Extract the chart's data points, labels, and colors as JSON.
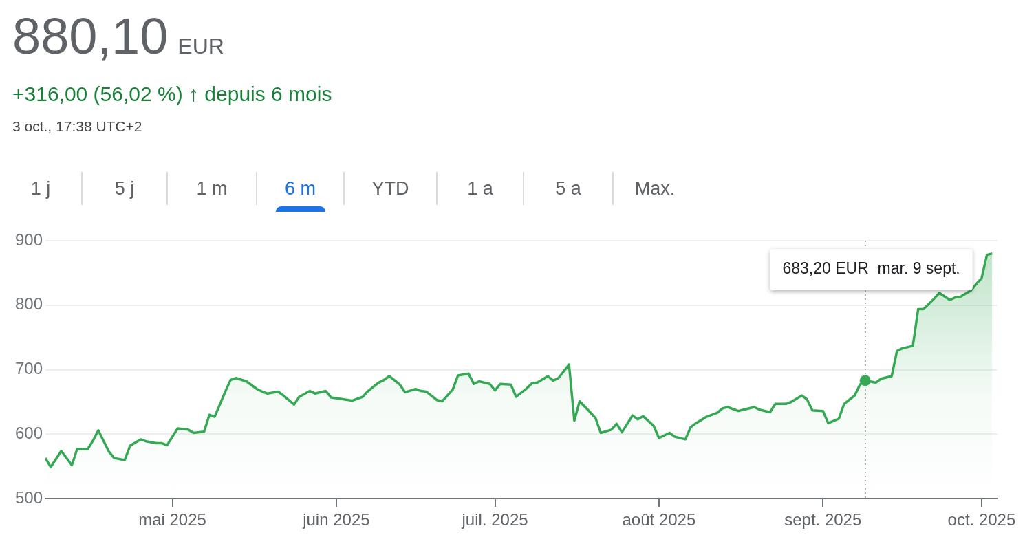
{
  "chart_data": {
    "type": "area",
    "title": "880,10 EUR",
    "subtitle": "+316,00 (56,02 %) ↑ depuis 6 mois",
    "annotations": [
      "3 oct., 17:38 UTC+2",
      "1 j",
      "5 j",
      "1 m",
      "6 m",
      "YTD",
      "1 a",
      "5 a",
      "Max.",
      "683,20 EUR  mar. 9 sept."
    ],
    "x": [
      "2025-04-07",
      "2025-04-08",
      "2025-04-10",
      "2025-04-12",
      "2025-04-13",
      "2025-04-15",
      "2025-04-16",
      "2025-04-17",
      "2025-04-19",
      "2025-04-20",
      "2025-04-22",
      "2025-04-23",
      "2025-04-25",
      "2025-04-26",
      "2025-04-28",
      "2025-04-29",
      "2025-04-30",
      "2025-05-02",
      "2025-05-04",
      "2025-05-05",
      "2025-05-07",
      "2025-05-08",
      "2025-05-09",
      "2025-05-11",
      "2025-05-12",
      "2025-05-13",
      "2025-05-15",
      "2025-05-17",
      "2025-05-18",
      "2025-05-19",
      "2025-05-21",
      "2025-05-22",
      "2025-05-24",
      "2025-05-25",
      "2025-05-27",
      "2025-05-28",
      "2025-05-30",
      "2025-05-31",
      "2025-06-04",
      "2025-06-06",
      "2025-06-07",
      "2025-06-09",
      "2025-06-10",
      "2025-06-11",
      "2025-06-13",
      "2025-06-14",
      "2025-06-16",
      "2025-06-17",
      "2025-06-18",
      "2025-06-20",
      "2025-06-21",
      "2025-06-23",
      "2025-06-24",
      "2025-06-26",
      "2025-06-27",
      "2025-06-28",
      "2025-06-30",
      "2025-07-01",
      "2025-07-02",
      "2025-07-04",
      "2025-07-05",
      "2025-07-07",
      "2025-07-08",
      "2025-07-09",
      "2025-07-11",
      "2025-07-12",
      "2025-07-13",
      "2025-07-15",
      "2025-07-16",
      "2025-07-17",
      "2025-07-19",
      "2025-07-20",
      "2025-07-21",
      "2025-07-23",
      "2025-07-24",
      "2025-07-25",
      "2025-07-27",
      "2025-07-28",
      "2025-07-29",
      "2025-07-31",
      "2025-08-01",
      "2025-08-03",
      "2025-08-04",
      "2025-08-06",
      "2025-08-07",
      "2025-08-08",
      "2025-08-10",
      "2025-08-12",
      "2025-08-13",
      "2025-08-14",
      "2025-08-16",
      "2025-08-17",
      "2025-08-19",
      "2025-08-20",
      "2025-08-22",
      "2025-08-23",
      "2025-08-25",
      "2025-08-26",
      "2025-08-28",
      "2025-08-29",
      "2025-08-30",
      "2025-09-01",
      "2025-09-02",
      "2025-09-04",
      "2025-09-05",
      "2025-09-07",
      "2025-09-08",
      "2025-09-09",
      "2025-09-11",
      "2025-09-12",
      "2025-09-14",
      "2025-09-15",
      "2025-09-16",
      "2025-09-18",
      "2025-09-19",
      "2025-09-20",
      "2025-09-22",
      "2025-09-23",
      "2025-09-25",
      "2025-09-26",
      "2025-09-27",
      "2025-09-29",
      "2025-09-30",
      "2025-10-01",
      "2025-10-02",
      "2025-10-03"
    ],
    "values": [
      563,
      549,
      574,
      552,
      577,
      577,
      590,
      606,
      573,
      563,
      560,
      582,
      592,
      589,
      586,
      586,
      583,
      609,
      607,
      602,
      604,
      630,
      627,
      666,
      684,
      687,
      682,
      670,
      666,
      663,
      666,
      660,
      646,
      658,
      667,
      663,
      667,
      657,
      652,
      658,
      667,
      680,
      684,
      690,
      677,
      665,
      670,
      667,
      666,
      653,
      651,
      669,
      691,
      694,
      678,
      682,
      678,
      668,
      678,
      677,
      658,
      671,
      679,
      680,
      690,
      683,
      687,
      708,
      621,
      651,
      634,
      625,
      602,
      607,
      616,
      603,
      629,
      623,
      628,
      613,
      594,
      602,
      596,
      592,
      611,
      617,
      627,
      633,
      640,
      642,
      636,
      638,
      642,
      638,
      634,
      647,
      647,
      650,
      660,
      654,
      637,
      636,
      617,
      624,
      647,
      660,
      677,
      683.2,
      680,
      686,
      690,
      729,
      733,
      737,
      794,
      794,
      810,
      819,
      808,
      812,
      813,
      823,
      833,
      842,
      878,
      880.1
    ],
    "color": "#34a853",
    "xlim": [
      "2025-04-07",
      "2025-10-04"
    ],
    "xticks": [
      {
        "value": "2025-05-01",
        "label": "mai 2025"
      },
      {
        "value": "2025-06-01",
        "label": "juin 2025"
      },
      {
        "value": "2025-07-01",
        "label": "juil. 2025"
      },
      {
        "value": "2025-08-01",
        "label": "août 2025"
      },
      {
        "value": "2025-09-01",
        "label": "sept. 2025"
      },
      {
        "value": "2025-10-01",
        "label": "oct. 2025"
      }
    ],
    "ylim": [
      500,
      900
    ],
    "yticks": [
      500,
      600,
      700,
      800,
      900
    ],
    "grid": "y",
    "ref_lines": [
      {
        "axis": "x",
        "value": "2025-09-09",
        "color": "#80868b",
        "line_style": "dotted"
      }
    ]
  }
}
